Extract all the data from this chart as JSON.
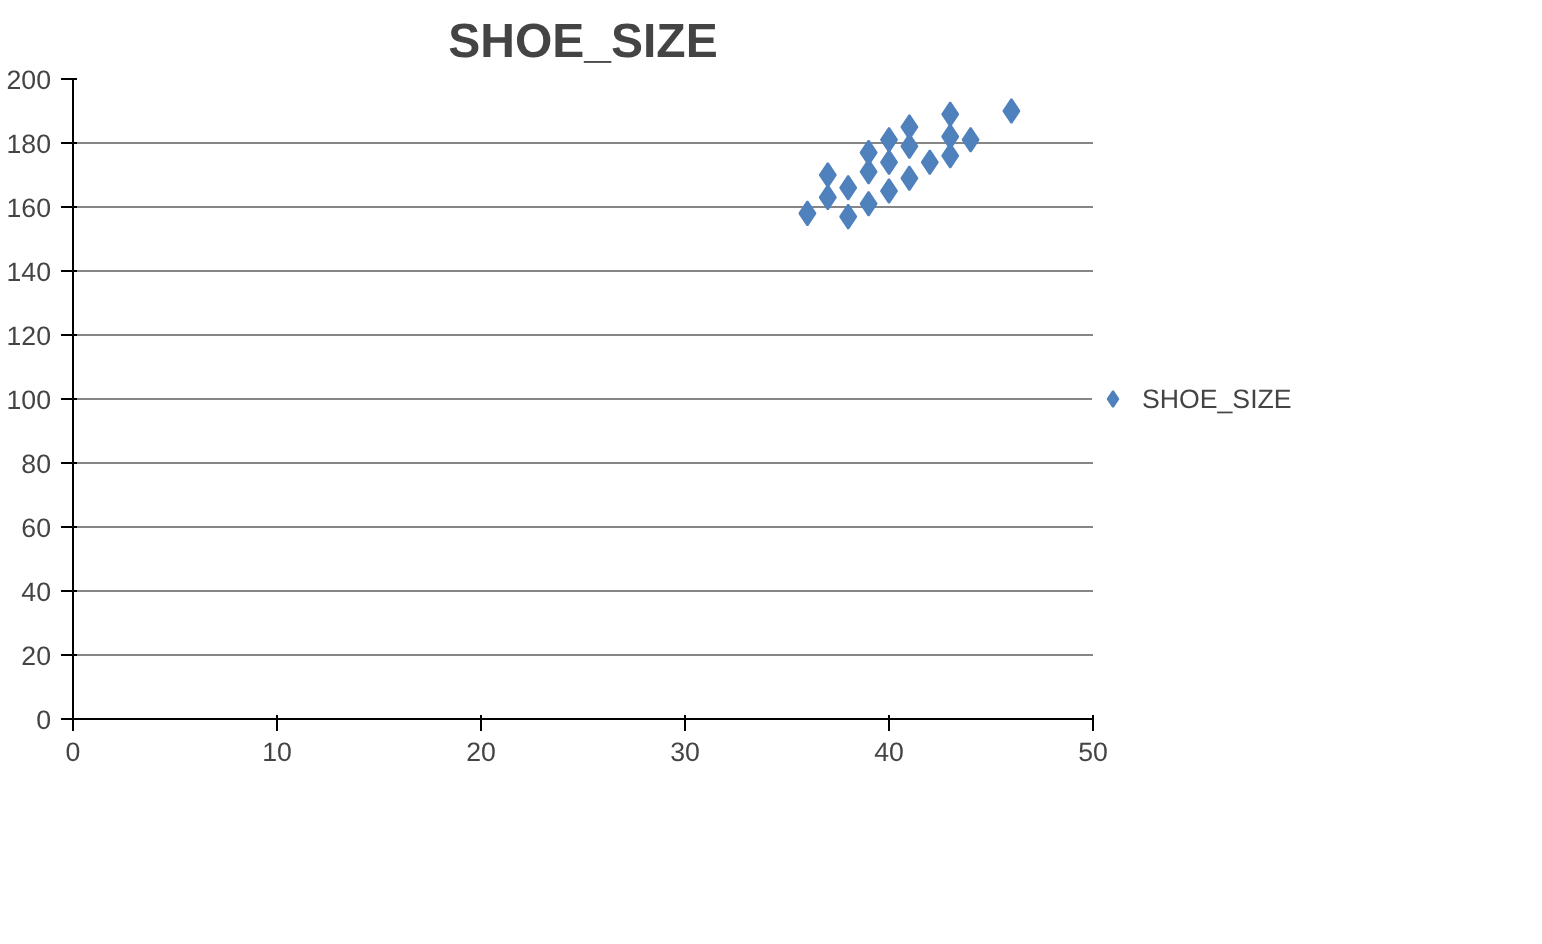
{
  "chart_data": {
    "type": "scatter",
    "title": "SHOE_SIZE",
    "x": [
      36,
      37,
      37,
      38,
      38,
      39,
      39,
      39,
      40,
      40,
      40,
      41,
      41,
      41,
      42,
      43,
      43,
      43,
      44,
      46
    ],
    "series": [
      {
        "name": "SHOE_SIZE",
        "color": "#4f81bd",
        "values": [
          158,
          163,
          170,
          157,
          166,
          161,
          171,
          177,
          165,
          174,
          181,
          169,
          179,
          185,
          174,
          176,
          182,
          189,
          181,
          190
        ]
      }
    ],
    "xlim": [
      0,
      50
    ],
    "xticks": [
      0,
      10,
      20,
      30,
      40,
      50
    ],
    "ylim": [
      0,
      200
    ],
    "yticks": [
      0,
      20,
      40,
      60,
      80,
      100,
      120,
      140,
      160,
      180,
      200
    ],
    "grid": "y",
    "legend": "right",
    "marker": "diamond"
  }
}
